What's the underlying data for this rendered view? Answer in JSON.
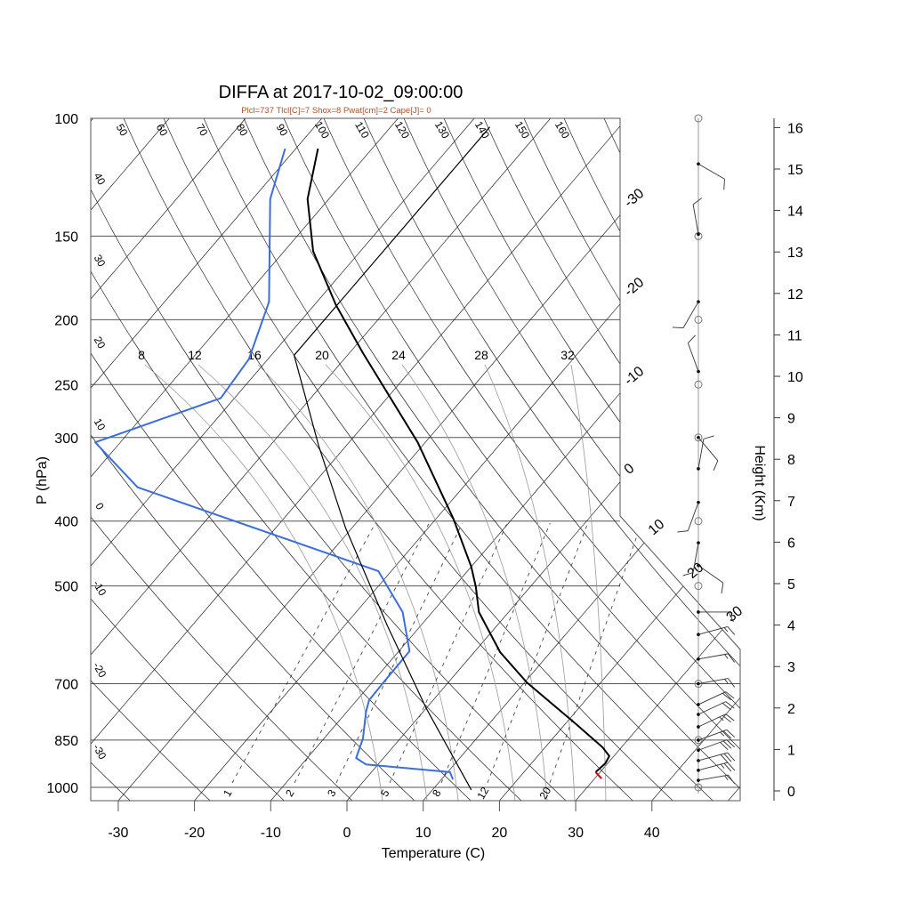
{
  "chart_data": {
    "type": "line",
    "title": "DIFFA at 2017-10-02_09:00:00",
    "subtitle": "Plcl=737 Tlcl[C]=7 Shox=8 Pwat[cm]=2 Cape[J]= 0",
    "xlabel": "Temperature (C)",
    "ylabel": "P (hPa)",
    "y2label": "Height (Km)",
    "xlim": [
      -33.5,
      51
    ],
    "ylim_hpa": [
      1047,
      100
    ],
    "x_ticks": [
      -30,
      -20,
      -10,
      0,
      10,
      20,
      30,
      40
    ],
    "p_ticks": [
      100,
      150,
      200,
      250,
      300,
      400,
      500,
      700,
      850,
      1000
    ],
    "height_ticks": [
      0,
      1,
      2,
      3,
      4,
      5,
      6,
      7,
      8,
      9,
      10,
      11,
      12,
      13,
      14,
      15,
      16
    ],
    "isotherm_labels": [
      -30,
      -20,
      -10,
      0,
      10,
      20,
      30
    ],
    "dry_adiabat_labels_top": [
      50,
      60,
      70,
      80,
      90,
      100,
      110,
      120,
      130,
      140,
      150,
      160
    ],
    "dry_adiabat_labels_left": [
      40,
      30,
      20,
      10,
      0,
      -10,
      -20,
      -30
    ],
    "moist_adiabat_labels": [
      8,
      12,
      16,
      20,
      24,
      28,
      32
    ],
    "mixing_ratio_labels": [
      1,
      2,
      3,
      5,
      8,
      12,
      20
    ],
    "colors": {
      "temperature": "#000000",
      "dewpoint": "#3a6de0",
      "parcel": "#000000",
      "surface": "#cc0000",
      "subtitle": "#b0522a"
    },
    "series": [
      {
        "name": "temperature",
        "points_p_T": [
          [
            949,
            29.4
          ],
          [
            921,
            29.7
          ],
          [
            898,
            29.4
          ],
          [
            871,
            27.5
          ],
          [
            802,
            21.2
          ],
          [
            697,
            10.3
          ],
          [
            628,
            3.4
          ],
          [
            547,
            -3.9
          ],
          [
            502,
            -7.1
          ],
          [
            468,
            -10.0
          ],
          [
            397,
            -17.7
          ],
          [
            305,
            -31.0
          ],
          [
            224,
            -48.3
          ],
          [
            190,
            -57.2
          ],
          [
            158,
            -66.2
          ],
          [
            132,
            -72.8
          ],
          [
            111,
            -77.1
          ]
        ]
      },
      {
        "name": "surface-segment",
        "points_p_T": [
          [
            970,
            30.9
          ],
          [
            949,
            29.4
          ]
        ]
      },
      {
        "name": "dewpoint",
        "points_p_T": [
          [
            973,
            11.5
          ],
          [
            949,
            10.3
          ],
          [
            924,
            -1.6
          ],
          [
            904,
            -3.6
          ],
          [
            845,
            -4.9
          ],
          [
            771,
            -7.5
          ],
          [
            741,
            -8.4
          ],
          [
            697,
            -8.5
          ],
          [
            626,
            -8.6
          ],
          [
            547,
            -13.9
          ],
          [
            475,
            -21.7
          ],
          [
            356,
            -62.7
          ],
          [
            305,
            -73.3
          ],
          [
            262,
            -61.8
          ],
          [
            229,
            -62.5
          ],
          [
            188,
            -66.3
          ],
          [
            132,
            -77.7
          ],
          [
            111,
            -81.4
          ]
        ]
      },
      {
        "name": "parcel",
        "points_p_T": [
          [
            1009,
            15.1
          ],
          [
            763,
            0.1
          ],
          [
            573,
            -14.4
          ],
          [
            409,
            -30.9
          ],
          [
            308,
            -43.7
          ],
          [
            226,
            -57.0
          ],
          [
            103,
            -57.0
          ]
        ]
      }
    ],
    "standard_levels_hpa": [
      100,
      150,
      200,
      250,
      300,
      400,
      500,
      700,
      850,
      1000
    ],
    "wind_barbs": [
      {
        "p": 117,
        "dir": 120,
        "spd": 10
      },
      {
        "p": 149,
        "dir": 350,
        "spd": 10
      },
      {
        "p": 188,
        "dir": 210,
        "spd": 10
      },
      {
        "p": 239,
        "dir": 340,
        "spd": 10
      },
      {
        "p": 300,
        "dir": 140,
        "spd": 10
      },
      {
        "p": 334,
        "dir": 10,
        "spd": 10
      },
      {
        "p": 375,
        "dir": 200,
        "spd": 10
      },
      {
        "p": 431,
        "dir": 190,
        "spd": 10
      },
      {
        "p": 466,
        "dir": 125,
        "spd": 10
      },
      {
        "p": 547,
        "dir": 90,
        "spd": 10
      },
      {
        "p": 591,
        "dir": 75,
        "spd": 15
      },
      {
        "p": 643,
        "dir": 80,
        "spd": 15
      },
      {
        "p": 700,
        "dir": 80,
        "spd": 15
      },
      {
        "p": 752,
        "dir": 65,
        "spd": 20
      },
      {
        "p": 778,
        "dir": 65,
        "spd": 20
      },
      {
        "p": 812,
        "dir": 65,
        "spd": 25
      },
      {
        "p": 850,
        "dir": 70,
        "spd": 25
      },
      {
        "p": 880,
        "dir": 70,
        "spd": 30
      },
      {
        "p": 912,
        "dir": 75,
        "spd": 30
      },
      {
        "p": 943,
        "dir": 75,
        "spd": 25
      },
      {
        "p": 976,
        "dir": 80,
        "spd": 15
      }
    ]
  }
}
